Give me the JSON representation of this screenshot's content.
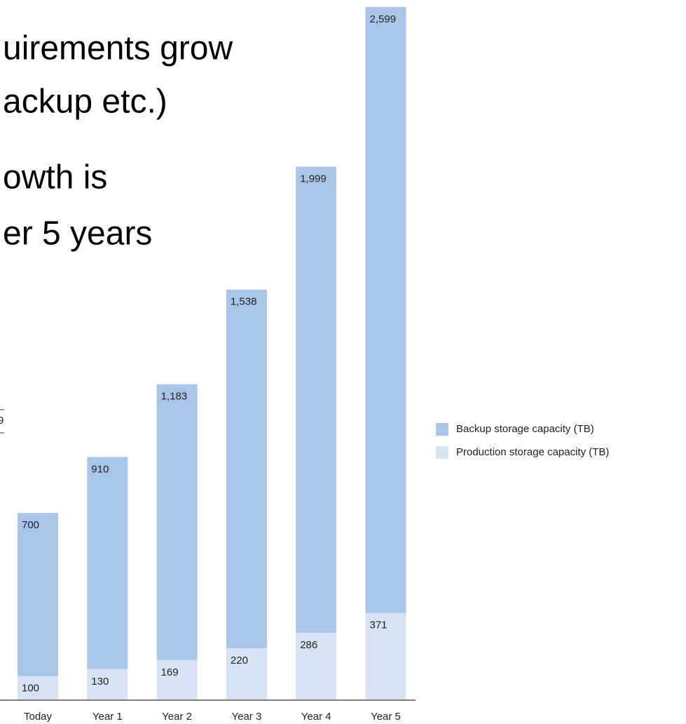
{
  "slide_text": [
    "uirements grow",
    "ackup etc.)",
    "owth is",
    "er 5 years"
  ],
  "fragment": "9",
  "chart_data": {
    "type": "stacked-bar",
    "categories": [
      "Today",
      "Year 1",
      "Year 2",
      "Year 3",
      "Year 4",
      "Year 5"
    ],
    "series": [
      {
        "name": "Production storage capacity (TB)",
        "color": "#d5e3f4",
        "values": [
          100,
          130,
          169,
          220,
          286,
          371
        ]
      },
      {
        "name": "Backup storage capacity (TB)",
        "color": "#a9c5e8",
        "values": [
          700,
          910,
          1183,
          1538,
          1999,
          2599
        ],
        "value_labels": [
          "700",
          "910",
          "1,183",
          "1,538",
          "1,999",
          "2,599"
        ]
      }
    ]
  }
}
